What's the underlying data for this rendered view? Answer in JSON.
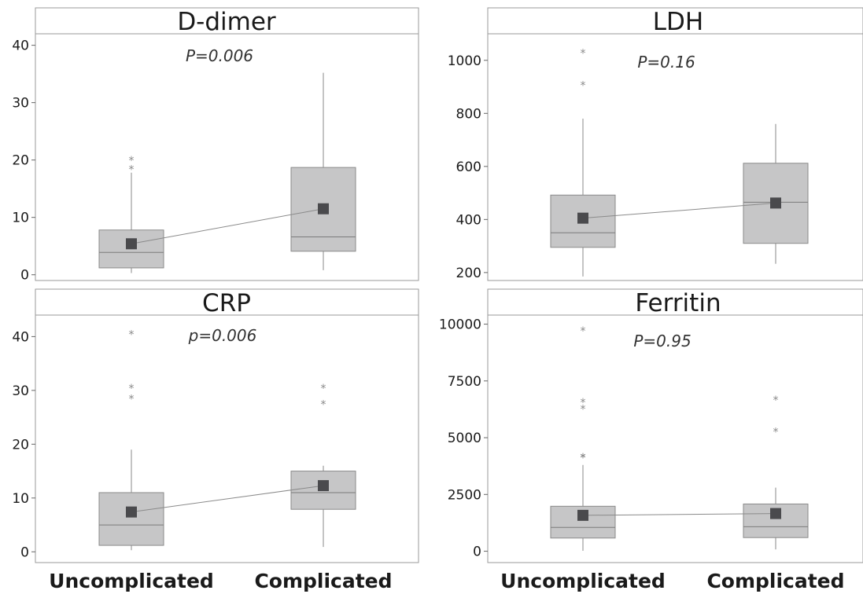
{
  "chart_data": [
    {
      "type": "box",
      "title": "D-dimer",
      "annotation": "P=0.006",
      "categories": [
        "Uncomplicated",
        "Complicated"
      ],
      "ylim": [
        -1,
        42
      ],
      "yticks": [
        0,
        10,
        20,
        30,
        40
      ],
      "tick_labels": [
        "0",
        "10",
        "20",
        "30",
        "40"
      ],
      "boxes": [
        {
          "category": "Uncomplicated",
          "min": 0.3,
          "q1": 1.2,
          "median": 3.9,
          "q3": 7.8,
          "max": 17.8,
          "mean": 5.4,
          "outliers": [
            18.9,
            20.5
          ]
        },
        {
          "category": "Complicated",
          "min": 0.8,
          "q1": 4.1,
          "median": 6.6,
          "q3": 18.7,
          "max": 35.2,
          "mean": 11.5,
          "outliers": []
        }
      ]
    },
    {
      "type": "box",
      "title": "LDH",
      "annotation": "P=0.16",
      "categories": [
        "Uncomplicated",
        "Complicated"
      ],
      "ylim": [
        170,
        1100
      ],
      "yticks": [
        200,
        400,
        600,
        800,
        1000
      ],
      "tick_labels": [
        "200",
        "400",
        "600",
        "800",
        "1000"
      ],
      "boxes": [
        {
          "category": "Uncomplicated",
          "min": 185,
          "q1": 295,
          "median": 350,
          "q3": 492,
          "max": 780,
          "mean": 405,
          "outliers": [
            918,
            1040
          ]
        },
        {
          "category": "Complicated",
          "min": 233,
          "q1": 310,
          "median": 465,
          "q3": 612,
          "max": 760,
          "mean": 462,
          "outliers": []
        }
      ]
    },
    {
      "type": "box",
      "title": "CRP",
      "annotation": "p=0.006",
      "categories": [
        "Uncomplicated",
        "Complicated"
      ],
      "ylim": [
        -2,
        44
      ],
      "yticks": [
        0,
        10,
        20,
        30,
        40
      ],
      "tick_labels": [
        "0",
        "10",
        "20",
        "30",
        "40"
      ],
      "boxes": [
        {
          "category": "Uncomplicated",
          "min": 0.3,
          "q1": 1.2,
          "median": 5.0,
          "q3": 11.0,
          "max": 19.0,
          "mean": 7.4,
          "outliers": [
            29.0,
            31.0,
            41.0
          ]
        },
        {
          "category": "Complicated",
          "min": 0.9,
          "q1": 7.9,
          "median": 11.0,
          "q3": 15.0,
          "max": 16.0,
          "mean": 12.3,
          "outliers": [
            28.0,
            31.0
          ]
        }
      ]
    },
    {
      "type": "box",
      "title": "Ferritin",
      "annotation": "P=0.95",
      "categories": [
        "Uncomplicated",
        "Complicated"
      ],
      "ylim": [
        -500,
        10400
      ],
      "yticks": [
        0,
        2500,
        5000,
        7500,
        10000
      ],
      "tick_labels": [
        "0",
        "2500",
        "5000",
        "7500",
        "10000"
      ],
      "boxes": [
        {
          "category": "Uncomplicated",
          "min": 20,
          "q1": 580,
          "median": 1050,
          "q3": 1980,
          "max": 3800,
          "mean": 1580,
          "outliers": [
            4250,
            4280,
            6400,
            6700,
            9850
          ]
        },
        {
          "category": "Complicated",
          "min": 80,
          "q1": 600,
          "median": 1080,
          "q3": 2080,
          "max": 2800,
          "mean": 1660,
          "outliers": [
            5400,
            6800
          ]
        }
      ]
    }
  ],
  "x_axis": {
    "labels": [
      "Uncomplicated",
      "Complicated"
    ]
  }
}
